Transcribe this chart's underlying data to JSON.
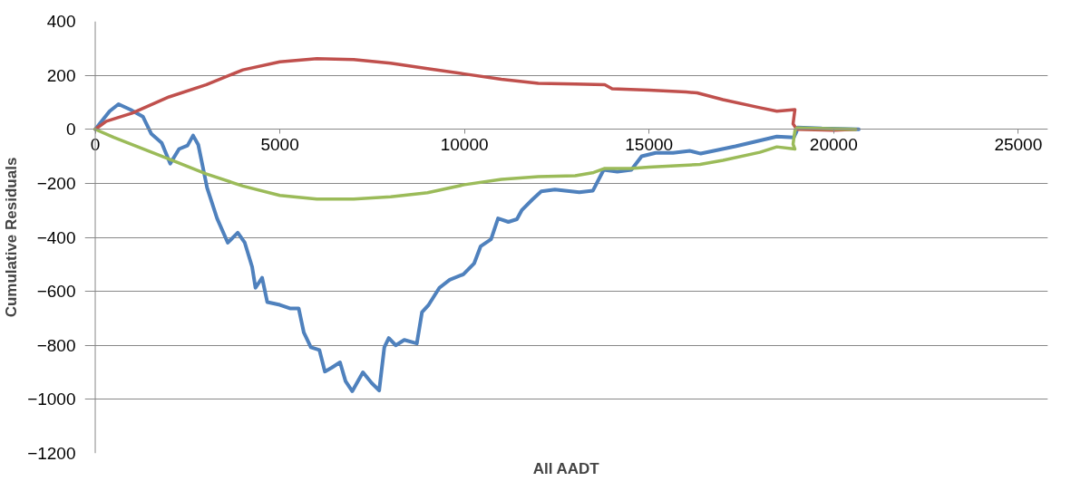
{
  "chart_data": {
    "type": "line",
    "xlabel": "All AADT",
    "ylabel": "Cumulative Residuals",
    "xlim": [
      0,
      25000
    ],
    "ylim": [
      -1200,
      400
    ],
    "xticks": [
      0,
      5000,
      10000,
      15000,
      20000,
      25000
    ],
    "yticks": [
      -1200,
      -1000,
      -800,
      -600,
      -400,
      -200,
      0,
      200,
      400
    ],
    "grid": "y",
    "marker": "none",
    "line_style": "solid",
    "series": [
      {
        "color": "#4f81bd",
        "x": [
          0,
          390,
          630,
          950,
          1290,
          1520,
          1800,
          2030,
          2270,
          2500,
          2650,
          2790,
          3030,
          3300,
          3590,
          3860,
          4050,
          4250,
          4340,
          4520,
          4660,
          5000,
          5270,
          5510,
          5650,
          5840,
          6070,
          6220,
          6400,
          6630,
          6780,
          6960,
          7250,
          7490,
          7690,
          7830,
          7950,
          8140,
          8370,
          8710,
          8850,
          9030,
          9320,
          9600,
          9970,
          10260,
          10440,
          10720,
          10910,
          11190,
          11420,
          11550,
          11840,
          12080,
          12450,
          13110,
          13480,
          13770,
          14140,
          14520,
          14800,
          15180,
          15650,
          16110,
          16400,
          17340,
          18460,
          18920,
          18990,
          19020,
          19680,
          20680
        ],
        "values": [
          0,
          67,
          93,
          73,
          47,
          -17,
          -50,
          -127,
          -73,
          -60,
          -23,
          -57,
          -217,
          -330,
          -420,
          -383,
          -420,
          -510,
          -587,
          -550,
          -640,
          -650,
          -663,
          -663,
          -753,
          -807,
          -817,
          -897,
          -883,
          -863,
          -933,
          -970,
          -900,
          -940,
          -967,
          -807,
          -773,
          -800,
          -780,
          -793,
          -677,
          -650,
          -587,
          -557,
          -537,
          -497,
          -433,
          -407,
          -330,
          -343,
          -333,
          -300,
          -260,
          -230,
          -223,
          -233,
          -227,
          -150,
          -157,
          -150,
          -100,
          -87,
          -87,
          -80,
          -90,
          -63,
          -27,
          -30,
          -10,
          7,
          3,
          0
        ]
      },
      {
        "color": "#c0504d",
        "x": [
          0,
          300,
          1000,
          2000,
          3000,
          4000,
          5000,
          6000,
          7000,
          8000,
          9000,
          10000,
          11000,
          12000,
          13000,
          13800,
          14000,
          15000,
          16000,
          16300,
          17000,
          18000,
          18460,
          18950,
          18900,
          19000,
          20000,
          20600
        ],
        "values": [
          0,
          30,
          60,
          120,
          165,
          220,
          250,
          262,
          258,
          245,
          225,
          205,
          185,
          170,
          168,
          165,
          150,
          145,
          138,
          135,
          110,
          80,
          67,
          73,
          20,
          0,
          -3,
          0
        ]
      },
      {
        "color": "#9bbb59",
        "x": [
          0,
          500,
          2000,
          3000,
          4000,
          5000,
          6000,
          7000,
          8000,
          9000,
          10000,
          11000,
          12000,
          13000,
          13500,
          13800,
          14500,
          15000,
          16380,
          17000,
          18000,
          18460,
          18950,
          18900,
          18950,
          19000,
          20000,
          20600
        ],
        "values": [
          0,
          -30,
          -110,
          -165,
          -210,
          -245,
          -258,
          -258,
          -250,
          -235,
          -205,
          -185,
          -175,
          -172,
          -160,
          -145,
          -145,
          -140,
          -130,
          -115,
          -85,
          -65,
          -73,
          -55,
          -5,
          5,
          2,
          0
        ]
      }
    ]
  }
}
